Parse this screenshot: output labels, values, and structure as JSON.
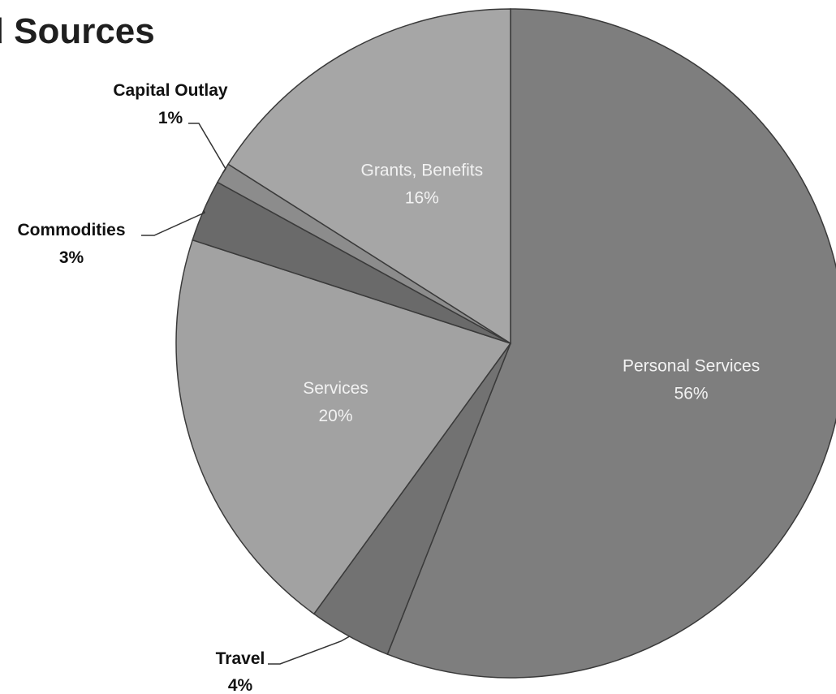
{
  "title": "d Sources",
  "chart_data": {
    "type": "pie",
    "title": "d Sources",
    "start_angle_deg": 0,
    "direction": "clockwise",
    "labels": [
      "Personal Services",
      "Travel",
      "Services",
      "Commodities",
      "Capital Outlay",
      "Grants, Benefits"
    ],
    "values": [
      56,
      4,
      20,
      3,
      1,
      16
    ],
    "value_labels": [
      "56%",
      "4%",
      "20%",
      "3%",
      "1%",
      "16%"
    ],
    "colors": [
      "#7e7e7e",
      "#727272",
      "#a2a2a2",
      "#6a6a6a",
      "#8c8c8c",
      "#a6a6a6"
    ],
    "label_placement": [
      "inside",
      "outside",
      "inside",
      "outside",
      "outside",
      "inside"
    ]
  }
}
